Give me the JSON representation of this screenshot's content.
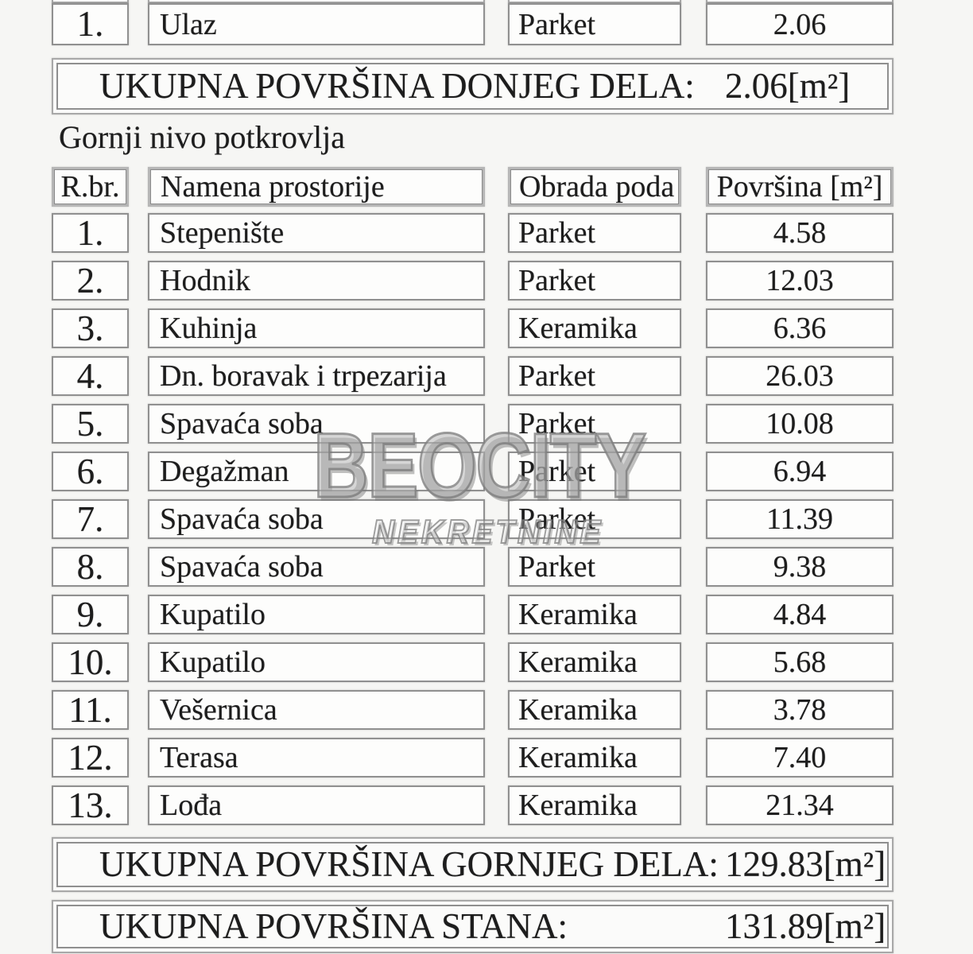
{
  "document": {
    "lower_section": {
      "row": {
        "num": "1.",
        "name": "Ulaz",
        "floor": "Parket",
        "area": "2.06"
      },
      "total_label": "UKUPNA POVRŠINA DONJEG DELA:",
      "total_value": "2.06[m²]"
    },
    "upper_section": {
      "title": "Gornji nivo potkrovlja",
      "headers": {
        "num": "R.br.",
        "name": "Namena prostorije",
        "floor": "Obrada poda",
        "area": "Površina [m²]"
      },
      "rows": [
        {
          "num": "1.",
          "name": "Stepenište",
          "floor": "Parket",
          "area": "4.58"
        },
        {
          "num": "2.",
          "name": "Hodnik",
          "floor": "Parket",
          "area": "12.03"
        },
        {
          "num": "3.",
          "name": "Kuhinja",
          "floor": "Keramika",
          "area": "6.36"
        },
        {
          "num": "4.",
          "name": "Dn. boravak i trpezarija",
          "floor": "Parket",
          "area": "26.03"
        },
        {
          "num": "5.",
          "name": "Spavaća soba",
          "floor": "Parket",
          "area": "10.08"
        },
        {
          "num": "6.",
          "name": "Degažman",
          "floor": "Parket",
          "area": "6.94"
        },
        {
          "num": "7.",
          "name": "Spavaća soba",
          "floor": "Parket",
          "area": "11.39"
        },
        {
          "num": "8.",
          "name": "Spavaća soba",
          "floor": "Parket",
          "area": "9.38"
        },
        {
          "num": "9.",
          "name": "Kupatilo",
          "floor": "Keramika",
          "area": "4.84"
        },
        {
          "num": "10.",
          "name": "Kupatilo",
          "floor": "Keramika",
          "area": "5.68"
        },
        {
          "num": "11.",
          "name": "Vešernica",
          "floor": "Keramika",
          "area": "3.78"
        },
        {
          "num": "12.",
          "name": "Terasa",
          "floor": "Keramika",
          "area": "7.40"
        },
        {
          "num": "13.",
          "name": "Lođa",
          "floor": "Keramika",
          "area": "21.34"
        }
      ],
      "total_label": "UKUPNA POVRŠINA GORNJEG DELA:",
      "total_value": "129.83[m²]"
    },
    "grand_total": {
      "label": "UKUPNA POVRŠINA STANA:",
      "value": "131.89[m²]"
    },
    "watermark": {
      "line1": "BEOCITY",
      "line2": "NEKRETNINE"
    },
    "colors": {
      "ink": "#1d1d1d",
      "cell_border": "#909090",
      "header_border": "#b6b6b6",
      "watermark_gray": "#808080"
    }
  }
}
